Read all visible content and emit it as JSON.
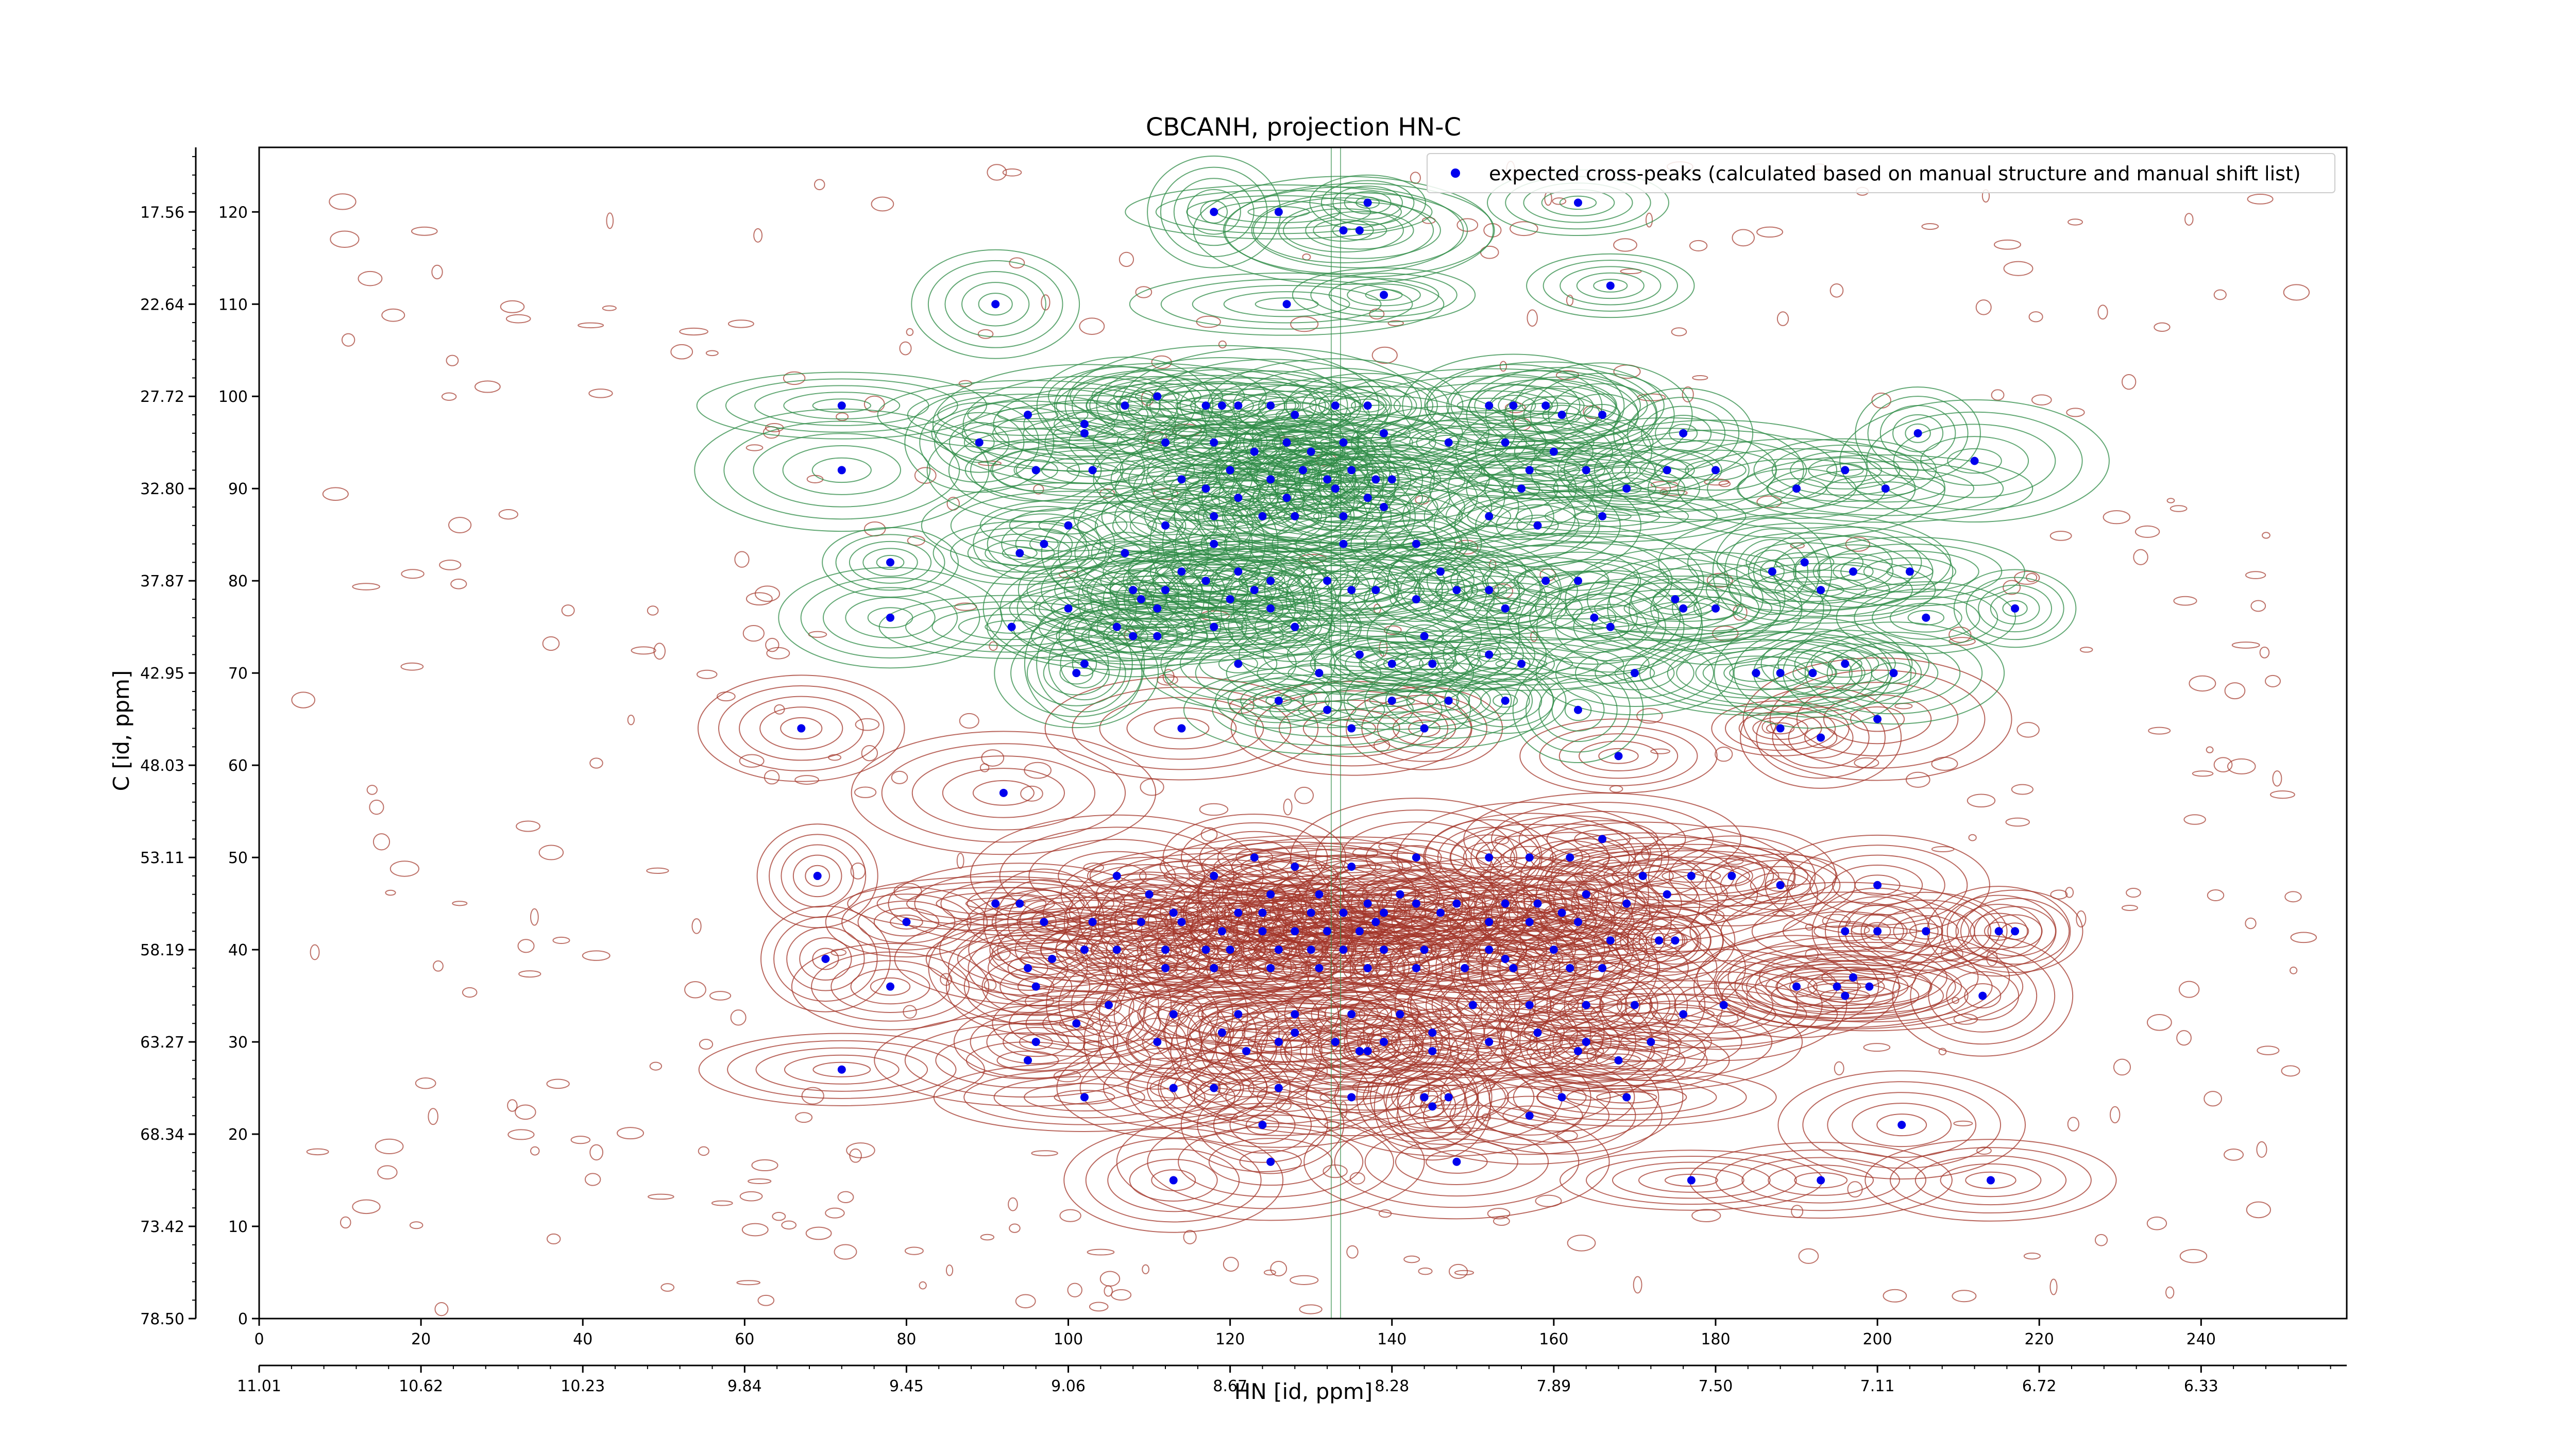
{
  "chart_data": {
    "type": "scatter",
    "title": "CBCANH, projection HN-C",
    "xlabel": "HN [id, ppm]",
    "ylabel": "C [id, ppm]",
    "xlim": [
      0,
      258
    ],
    "ylim": [
      0,
      127
    ],
    "x_ticks_index": [
      "0",
      "20",
      "40",
      "60",
      "80",
      "100",
      "120",
      "140",
      "160",
      "180",
      "200",
      "220",
      "240"
    ],
    "x_ticks_ppm": [
      "11.01",
      "10.62",
      "10.23",
      "9.84",
      "9.45",
      "9.06",
      "8.67",
      "8.28",
      "7.89",
      "7.50",
      "7.11",
      "6.72",
      "6.33"
    ],
    "y_ticks_index": [
      "0",
      "10",
      "20",
      "30",
      "40",
      "50",
      "60",
      "70",
      "80",
      "90",
      "100",
      "110",
      "120"
    ],
    "y_ticks_ppm": [
      "78.50",
      "73.42",
      "68.34",
      "63.27",
      "58.19",
      "53.11",
      "48.03",
      "42.95",
      "37.87",
      "32.80",
      "27.72",
      "22.64",
      "17.56"
    ],
    "legend": {
      "position": "top-right",
      "label": "expected cross-peaks (calculated based on manual structure and manual shift list)"
    },
    "grid": false,
    "colors": {
      "marker": "#0000ee",
      "positive_contour": "#2e8b46",
      "negative_contour": "#a3362a"
    },
    "series": [
      {
        "name": "expected cross-peaks (calculated based on manual structure and manual shift list)",
        "points": [
          [
            118,
            120
          ],
          [
            126,
            120
          ],
          [
            137,
            121
          ],
          [
            136,
            118
          ],
          [
            134,
            118
          ],
          [
            163,
            121
          ],
          [
            91,
            110
          ],
          [
            127,
            110
          ],
          [
            139,
            111
          ],
          [
            167,
            112
          ],
          [
            72,
            99
          ],
          [
            95,
            98
          ],
          [
            102,
            97
          ],
          [
            107,
            99
          ],
          [
            111,
            100
          ],
          [
            117,
            99
          ],
          [
            119,
            99
          ],
          [
            121,
            99
          ],
          [
            125,
            99
          ],
          [
            128,
            98
          ],
          [
            133,
            99
          ],
          [
            137,
            99
          ],
          [
            152,
            99
          ],
          [
            155,
            99
          ],
          [
            159,
            99
          ],
          [
            161,
            98
          ],
          [
            166,
            98
          ],
          [
            176,
            96
          ],
          [
            205,
            96
          ],
          [
            89,
            95
          ],
          [
            102,
            96
          ],
          [
            112,
            95
          ],
          [
            118,
            95
          ],
          [
            123,
            94
          ],
          [
            127,
            95
          ],
          [
            130,
            94
          ],
          [
            134,
            95
          ],
          [
            139,
            96
          ],
          [
            147,
            95
          ],
          [
            154,
            95
          ],
          [
            160,
            94
          ],
          [
            72,
            92
          ],
          [
            96,
            92
          ],
          [
            103,
            92
          ],
          [
            114,
            91
          ],
          [
            120,
            92
          ],
          [
            125,
            91
          ],
          [
            129,
            92
          ],
          [
            132,
            91
          ],
          [
            135,
            92
          ],
          [
            138,
            91
          ],
          [
            140,
            91
          ],
          [
            157,
            92
          ],
          [
            164,
            92
          ],
          [
            174,
            92
          ],
          [
            180,
            92
          ],
          [
            196,
            92
          ],
          [
            212,
            93
          ],
          [
            117,
            90
          ],
          [
            121,
            89
          ],
          [
            127,
            89
          ],
          [
            133,
            90
          ],
          [
            137,
            89
          ],
          [
            156,
            90
          ],
          [
            169,
            90
          ],
          [
            190,
            90
          ],
          [
            201,
            90
          ],
          [
            100,
            86
          ],
          [
            112,
            86
          ],
          [
            118,
            87
          ],
          [
            124,
            87
          ],
          [
            128,
            87
          ],
          [
            134,
            87
          ],
          [
            139,
            88
          ],
          [
            152,
            87
          ],
          [
            158,
            86
          ],
          [
            166,
            87
          ],
          [
            97,
            84
          ],
          [
            107,
            83
          ],
          [
            118,
            84
          ],
          [
            134,
            84
          ],
          [
            143,
            84
          ],
          [
            94,
            83
          ],
          [
            78,
            82
          ],
          [
            114,
            81
          ],
          [
            121,
            81
          ],
          [
            132,
            80
          ],
          [
            146,
            81
          ],
          [
            159,
            80
          ],
          [
            187,
            81
          ],
          [
            191,
            82
          ],
          [
            197,
            81
          ],
          [
            204,
            81
          ],
          [
            108,
            79
          ],
          [
            112,
            79
          ],
          [
            117,
            80
          ],
          [
            123,
            79
          ],
          [
            125,
            80
          ],
          [
            135,
            79
          ],
          [
            138,
            79
          ],
          [
            148,
            79
          ],
          [
            152,
            79
          ],
          [
            163,
            80
          ],
          [
            175,
            78
          ],
          [
            176,
            77
          ],
          [
            193,
            79
          ],
          [
            100,
            77
          ],
          [
            109,
            78
          ],
          [
            111,
            77
          ],
          [
            120,
            78
          ],
          [
            125,
            77
          ],
          [
            143,
            78
          ],
          [
            154,
            77
          ],
          [
            165,
            76
          ],
          [
            180,
            77
          ],
          [
            206,
            76
          ],
          [
            217,
            77
          ],
          [
            78,
            76
          ],
          [
            93,
            75
          ],
          [
            106,
            75
          ],
          [
            108,
            74
          ],
          [
            111,
            74
          ],
          [
            118,
            75
          ],
          [
            128,
            75
          ],
          [
            144,
            74
          ],
          [
            167,
            75
          ],
          [
            102,
            71
          ],
          [
            101,
            70
          ],
          [
            121,
            71
          ],
          [
            131,
            70
          ],
          [
            136,
            72
          ],
          [
            140,
            71
          ],
          [
            145,
            71
          ],
          [
            152,
            72
          ],
          [
            156,
            71
          ],
          [
            170,
            70
          ],
          [
            185,
            70
          ],
          [
            188,
            70
          ],
          [
            192,
            70
          ],
          [
            196,
            71
          ],
          [
            202,
            70
          ],
          [
            126,
            67
          ],
          [
            132,
            66
          ],
          [
            140,
            67
          ],
          [
            147,
            67
          ],
          [
            154,
            67
          ],
          [
            163,
            66
          ],
          [
            114,
            64
          ],
          [
            135,
            64
          ],
          [
            144,
            64
          ],
          [
            188,
            64
          ],
          [
            193,
            63
          ],
          [
            200,
            65
          ],
          [
            168,
            61
          ],
          [
            67,
            64
          ],
          [
            92,
            57
          ],
          [
            69,
            48
          ],
          [
            94,
            45
          ],
          [
            91,
            45
          ],
          [
            123,
            50
          ],
          [
            128,
            49
          ],
          [
            135,
            49
          ],
          [
            143,
            50
          ],
          [
            152,
            50
          ],
          [
            157,
            50
          ],
          [
            162,
            50
          ],
          [
            166,
            52
          ],
          [
            171,
            48
          ],
          [
            177,
            48
          ],
          [
            182,
            48
          ],
          [
            188,
            47
          ],
          [
            200,
            47
          ],
          [
            106,
            48
          ],
          [
            110,
            46
          ],
          [
            118,
            48
          ],
          [
            125,
            46
          ],
          [
            131,
            46
          ],
          [
            137,
            45
          ],
          [
            141,
            46
          ],
          [
            148,
            45
          ],
          [
            154,
            45
          ],
          [
            158,
            45
          ],
          [
            164,
            46
          ],
          [
            169,
            45
          ],
          [
            174,
            46
          ],
          [
            113,
            44
          ],
          [
            121,
            44
          ],
          [
            124,
            44
          ],
          [
            130,
            44
          ],
          [
            134,
            44
          ],
          [
            139,
            44
          ],
          [
            143,
            45
          ],
          [
            146,
            44
          ],
          [
            161,
            44
          ],
          [
            80,
            43
          ],
          [
            97,
            43
          ],
          [
            103,
            43
          ],
          [
            109,
            43
          ],
          [
            114,
            43
          ],
          [
            119,
            42
          ],
          [
            124,
            42
          ],
          [
            128,
            42
          ],
          [
            132,
            42
          ],
          [
            136,
            42
          ],
          [
            138,
            43
          ],
          [
            152,
            43
          ],
          [
            157,
            43
          ],
          [
            163,
            43
          ],
          [
            98,
            39
          ],
          [
            102,
            40
          ],
          [
            106,
            40
          ],
          [
            112,
            40
          ],
          [
            117,
            40
          ],
          [
            120,
            40
          ],
          [
            126,
            40
          ],
          [
            130,
            40
          ],
          [
            134,
            40
          ],
          [
            139,
            40
          ],
          [
            144,
            40
          ],
          [
            152,
            40
          ],
          [
            154,
            39
          ],
          [
            160,
            40
          ],
          [
            167,
            41
          ],
          [
            173,
            41
          ],
          [
            175,
            41
          ],
          [
            196,
            42
          ],
          [
            200,
            42
          ],
          [
            206,
            42
          ],
          [
            215,
            42
          ],
          [
            217,
            42
          ],
          [
            70,
            39
          ],
          [
            95,
            38
          ],
          [
            112,
            38
          ],
          [
            118,
            38
          ],
          [
            125,
            38
          ],
          [
            131,
            38
          ],
          [
            137,
            38
          ],
          [
            143,
            38
          ],
          [
            149,
            38
          ],
          [
            155,
            38
          ],
          [
            162,
            38
          ],
          [
            166,
            38
          ],
          [
            190,
            36
          ],
          [
            195,
            36
          ],
          [
            197,
            37
          ],
          [
            199,
            36
          ],
          [
            196,
            35
          ],
          [
            213,
            35
          ],
          [
            78,
            36
          ],
          [
            96,
            36
          ],
          [
            105,
            34
          ],
          [
            113,
            33
          ],
          [
            121,
            33
          ],
          [
            128,
            33
          ],
          [
            135,
            33
          ],
          [
            141,
            33
          ],
          [
            150,
            34
          ],
          [
            157,
            34
          ],
          [
            164,
            34
          ],
          [
            170,
            34
          ],
          [
            176,
            33
          ],
          [
            181,
            34
          ],
          [
            96,
            30
          ],
          [
            101,
            32
          ],
          [
            119,
            31
          ],
          [
            126,
            30
          ],
          [
            133,
            30
          ],
          [
            139,
            30
          ],
          [
            145,
            31
          ],
          [
            152,
            30
          ],
          [
            158,
            31
          ],
          [
            164,
            30
          ],
          [
            172,
            30
          ],
          [
            128,
            31
          ],
          [
            136,
            29
          ],
          [
            137,
            29
          ],
          [
            95,
            28
          ],
          [
            111,
            30
          ],
          [
            122,
            29
          ],
          [
            145,
            29
          ],
          [
            163,
            29
          ],
          [
            168,
            28
          ],
          [
            72,
            27
          ],
          [
            102,
            24
          ],
          [
            113,
            25
          ],
          [
            118,
            25
          ],
          [
            126,
            25
          ],
          [
            145,
            23
          ],
          [
            157,
            22
          ],
          [
            161,
            24
          ],
          [
            124,
            21
          ],
          [
            135,
            24
          ],
          [
            144,
            24
          ],
          [
            147,
            24
          ],
          [
            169,
            24
          ],
          [
            203,
            21
          ],
          [
            113,
            15
          ],
          [
            125,
            17
          ],
          [
            148,
            17
          ],
          [
            177,
            15
          ],
          [
            193,
            15
          ],
          [
            214,
            15
          ]
        ]
      }
    ]
  }
}
